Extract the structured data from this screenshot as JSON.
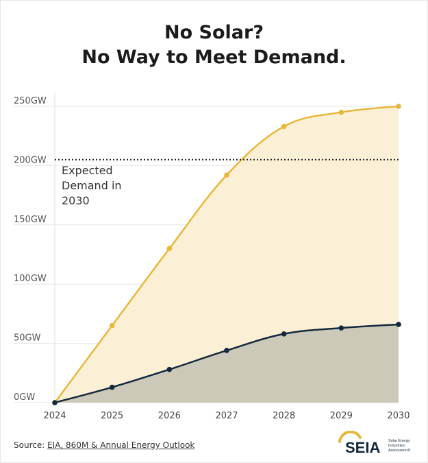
{
  "title_line1": "No Solar?",
  "title_line2": "No Way to Meet Demand.",
  "source": {
    "prefix": "Source: ",
    "link_text": "EIA, 860M & Annual Energy Outlook"
  },
  "logo": {
    "name": "SEIA",
    "tagline": [
      "Solar Energy",
      "Industries",
      "Association®"
    ]
  },
  "chart_data": {
    "type": "area",
    "x": [
      "2024",
      "2025",
      "2026",
      "2027",
      "2028",
      "2029",
      "2030"
    ],
    "ytick_labels": [
      "0GW",
      "50GW",
      "100GW",
      "150GW",
      "200GW",
      "250GW"
    ],
    "ytick_values": [
      0,
      50,
      100,
      150,
      200,
      250
    ],
    "ylim": [
      0,
      250
    ],
    "grid": true,
    "series": [
      {
        "values": [
          0,
          65,
          130,
          192,
          233,
          245,
          250
        ],
        "color": "#e8b83a",
        "fill": "#fbf0d6"
      },
      {
        "values": [
          0,
          13,
          28,
          44,
          58,
          63,
          66
        ],
        "color": "#13283d",
        "fill": "#cdc9b8"
      }
    ],
    "reference_line": {
      "value": 205,
      "label": [
        "Expected",
        "Demand in",
        "2030"
      ]
    }
  }
}
